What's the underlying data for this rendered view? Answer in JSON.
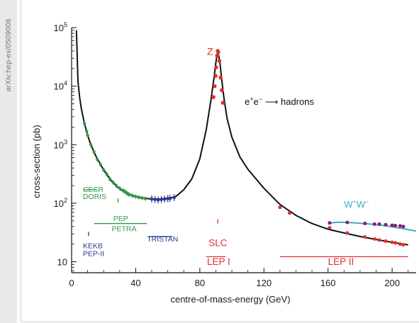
{
  "side_label": "arXiv:hep-ex/0509008",
  "chart_data": {
    "type": "line",
    "xlabel": "centre-of-mass-energy (GeV)",
    "ylabel": "cross-section (pb)",
    "xlim": [
      0,
      215
    ],
    "ylim": [
      6.5,
      100000
    ],
    "yscale": "log",
    "x_ticks": [
      0,
      40,
      80,
      120,
      160,
      200
    ],
    "x_tick_labels": [
      "0",
      "40",
      "80",
      "120",
      "160",
      "200"
    ],
    "y_tick_labels": [
      {
        "base": "10",
        "exp": "",
        "value": 10
      },
      {
        "base": "10",
        "exp": "2",
        "value": 100
      },
      {
        "base": "10",
        "exp": "3",
        "value": 1000
      },
      {
        "base": "10",
        "exp": "4",
        "value": 10000
      },
      {
        "base": "10",
        "exp": "5",
        "value": 100000
      }
    ],
    "reaction_label": {
      "base": "e",
      "sup1": "+",
      "mid": "e",
      "sup2": "−",
      "arrow": "⟶ hadrons"
    },
    "ww_label": {
      "base": "W",
      "sup1": "+",
      "mid": "W",
      "sup2": "−"
    },
    "z_label": "Z",
    "colors": {
      "theory": "#111111",
      "green": "#2e9a48",
      "blue": "#2a3b8f",
      "red": "#e03030",
      "teal": "#3aaeb4",
      "purple": "#8a1a7a"
    },
    "series": [
      {
        "name": "",
        "style": "theory-curve",
        "x": [
          3,
          4,
          5,
          6,
          8,
          10,
          12,
          15,
          20,
          25,
          30,
          35,
          40,
          45,
          50,
          55,
          60,
          63,
          65,
          70,
          75,
          80,
          84,
          87,
          89,
          90,
          91.2,
          92.5,
          93.5,
          95,
          97,
          100,
          105,
          110,
          120,
          130,
          140,
          150,
          160,
          170,
          180,
          190,
          200,
          210
        ],
        "y": [
          90000,
          12000,
          6500,
          4200,
          2300,
          1450,
          1000,
          650,
          370,
          240,
          175,
          145,
          130,
          122,
          118,
          118,
          122,
          126,
          130,
          170,
          260,
          570,
          1800,
          6000,
          15000,
          25000,
          40000,
          26000,
          14000,
          6500,
          2800,
          1350,
          620,
          380,
          180,
          95,
          62,
          45,
          36,
          31,
          27,
          24,
          21.5,
          19.5
        ]
      },
      {
        "name": "",
        "style": "teal-curve",
        "x": [
          160,
          163,
          166,
          170,
          175,
          180,
          185,
          190,
          195,
          200,
          205,
          210,
          215
        ],
        "y": [
          45,
          46.5,
          47.2,
          47.0,
          46.5,
          45.5,
          44.5,
          43.0,
          41.5,
          39.5,
          37.5,
          35.5,
          33.5
        ]
      },
      {
        "name": "",
        "style": "green-points",
        "x": [
          8,
          9.4,
          10,
          12,
          14,
          16,
          18,
          20,
          22,
          24,
          26,
          28,
          30,
          32,
          33,
          34,
          35,
          36,
          38,
          40,
          42,
          44,
          46
        ],
        "y": [
          2300,
          1700,
          1450,
          1000,
          750,
          560,
          460,
          370,
          310,
          255,
          225,
          198,
          180,
          166,
          160,
          153,
          145,
          140,
          134,
          130,
          126,
          123,
          120
        ]
      },
      {
        "name": "",
        "style": "blue-points",
        "x": [
          50,
          52,
          54,
          56,
          58,
          60,
          61.4,
          64
        ],
        "y": [
          118,
          116,
          114,
          116,
          118,
          120,
          121,
          125
        ]
      },
      {
        "name": "",
        "style": "red-points-z",
        "x": [
          88.5,
          89.2,
          89.8,
          90.2,
          90.8,
          91.2,
          91.5,
          92.2,
          93.0,
          93.7,
          94.4
        ],
        "y": [
          6500,
          10000,
          15000,
          21000,
          33000,
          40000,
          38000,
          27000,
          14000,
          8500,
          5200
        ]
      },
      {
        "name": "",
        "style": "red-points-lep2",
        "x": [
          130,
          136,
          161,
          172,
          183,
          189,
          192,
          196,
          200,
          202,
          205,
          207
        ],
        "y": [
          85,
          68,
          38,
          31,
          26.5,
          24.5,
          23.5,
          22.5,
          21.5,
          21,
          20,
          19.5
        ]
      },
      {
        "name": "",
        "style": "purple-points",
        "x": [
          161,
          172,
          183,
          189,
          192,
          196,
          200,
          202,
          205,
          207
        ],
        "y": [
          46,
          47,
          45,
          44,
          44,
          43,
          42,
          41.5,
          41,
          40
        ]
      }
    ],
    "annotations": [
      {
        "text": "CESR",
        "x": 7,
        "y": 155,
        "color": "#2e9a48",
        "bar": [
          7.5,
          15
        ],
        "bar_y": 170
      },
      {
        "text": "DORIS",
        "x": 7,
        "y": 118,
        "color": "#2e9a48"
      },
      {
        "text": "PEP",
        "x": 26,
        "y": 50,
        "color": "#2e9a48",
        "bar": [
          29,
          29
        ],
        "bar_y": 112,
        "vertical": true
      },
      {
        "text": "PETRA",
        "x": 25,
        "y": 33,
        "color": "#2e9a48",
        "bar": [
          14,
          47
        ],
        "bar_y": 45
      },
      {
        "text": "KEKB",
        "x": 7,
        "y": 17,
        "color": "#2a3b8f",
        "bar": [
          10.6,
          10.6
        ],
        "bar_y": 30,
        "vertical": true
      },
      {
        "text": "PEP-II",
        "x": 7,
        "y": 12.5,
        "color": "#2a3b8f"
      },
      {
        "text": "TRISTAN",
        "x": 47,
        "y": 22,
        "color": "#2a3b8f",
        "bar": [
          48,
          63
        ],
        "bar_y": 27
      },
      {
        "text": "SLC",
        "x": 85.5,
        "y": 18.5,
        "color": "#e03030",
        "bar": [
          91.2,
          91.2
        ],
        "bar_y": 49,
        "vertical": true
      },
      {
        "text": "LEP I",
        "x": 84.5,
        "y": 8.8,
        "color": "#e03030",
        "bar": [
          84,
          96
        ],
        "bar_y": 12.2
      },
      {
        "text": "LEP II",
        "x": 160,
        "y": 8.8,
        "color": "#e03030",
        "bar": [
          130,
          210
        ],
        "bar_y": 12.2
      }
    ],
    "grid": false,
    "legend": "none"
  }
}
